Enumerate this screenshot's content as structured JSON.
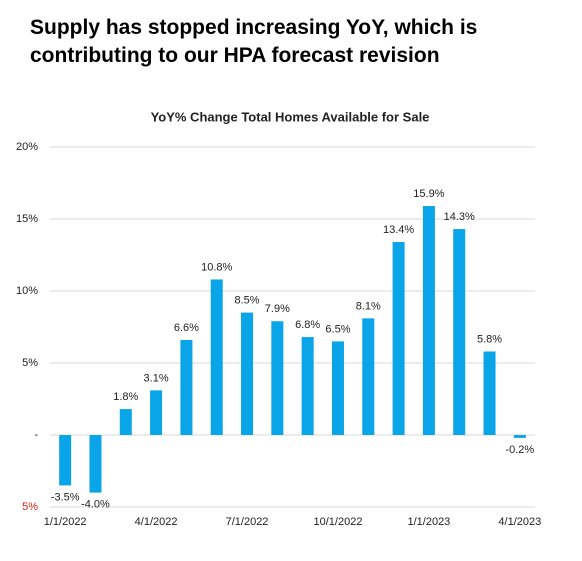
{
  "page_title": "Supply has stopped increasing YoY, which is contributing to our HPA forecast revision",
  "chart_data": {
    "type": "bar",
    "title": "YoY% Change Total Homes Available for Sale",
    "categories": [
      "1/1/2022",
      null,
      null,
      "4/1/2022",
      null,
      null,
      "7/1/2022",
      null,
      null,
      "10/1/2022",
      null,
      null,
      "1/1/2023",
      null,
      null,
      "4/1/2023"
    ],
    "values": [
      -3.5,
      -4.0,
      1.8,
      3.1,
      6.6,
      10.8,
      8.5,
      7.9,
      6.8,
      6.5,
      8.1,
      13.4,
      15.9,
      14.3,
      5.8,
      -0.2
    ],
    "value_labels": [
      "-3.5%",
      "-4.0%",
      "1.8%",
      "3.1%",
      "6.6%",
      "10.8%",
      "8.5%",
      "7.9%",
      "6.8%",
      "6.5%",
      "8.1%",
      "13.4%",
      "15.9%",
      "14.3%",
      "5.8%",
      "-0.2%"
    ],
    "color": "#0aa4e8",
    "ylim": [
      -5,
      20
    ],
    "yticks": [
      {
        "value": -5,
        "label": "5%",
        "color": "#e0201b"
      },
      {
        "value": 0,
        "label": "-"
      },
      {
        "value": 5,
        "label": "5%"
      },
      {
        "value": 10,
        "label": "10%"
      },
      {
        "value": 15,
        "label": "15%"
      },
      {
        "value": 20,
        "label": "20%"
      }
    ],
    "grid": true
  }
}
